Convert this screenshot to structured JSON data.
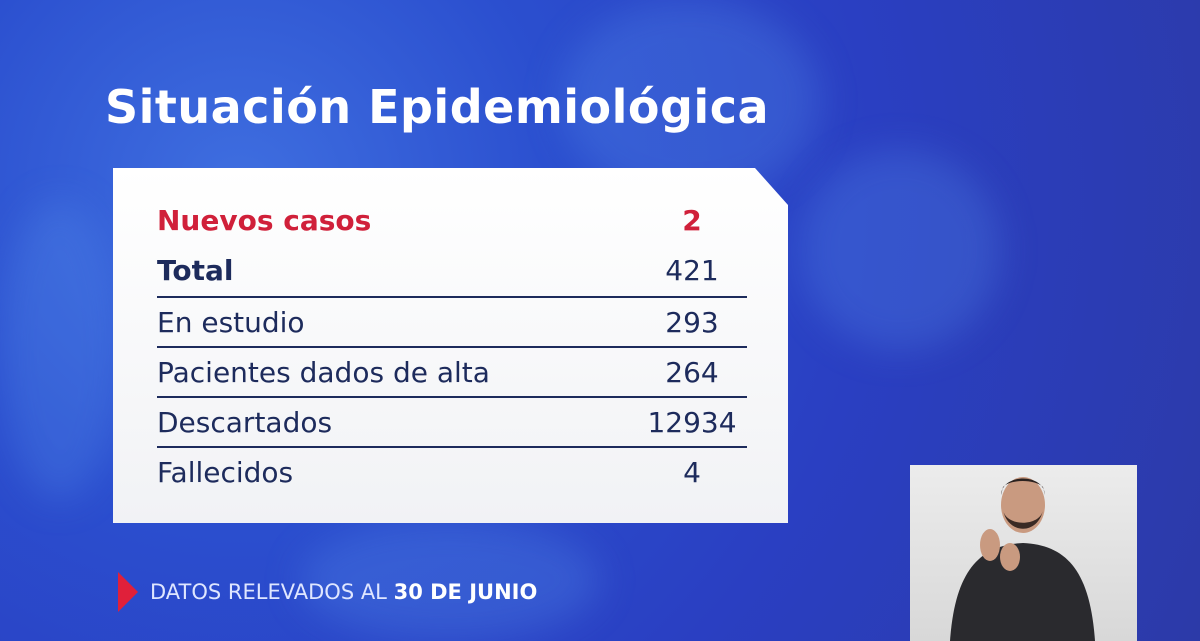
{
  "title": "Situación Epidemiológica",
  "rows": [
    {
      "label": "Nuevos casos",
      "value": "2",
      "style": "highlight"
    },
    {
      "label": "Total",
      "value": "421",
      "style": "bold"
    },
    {
      "label": "En estudio",
      "value": "293"
    },
    {
      "label": "Pacientes dados de alta",
      "value": "264"
    },
    {
      "label": "Descartados",
      "value": "12934"
    },
    {
      "label": "Fallecidos",
      "value": "4"
    }
  ],
  "footer": {
    "prefix": "DATOS RELEVADOS AL",
    "date": "30 DE JUNIO"
  },
  "colors": {
    "accent": "#d0203a",
    "text": "#1d2b5c",
    "background": "#2b4fcf"
  },
  "icons": {
    "footer": "triangle-marker-icon"
  }
}
